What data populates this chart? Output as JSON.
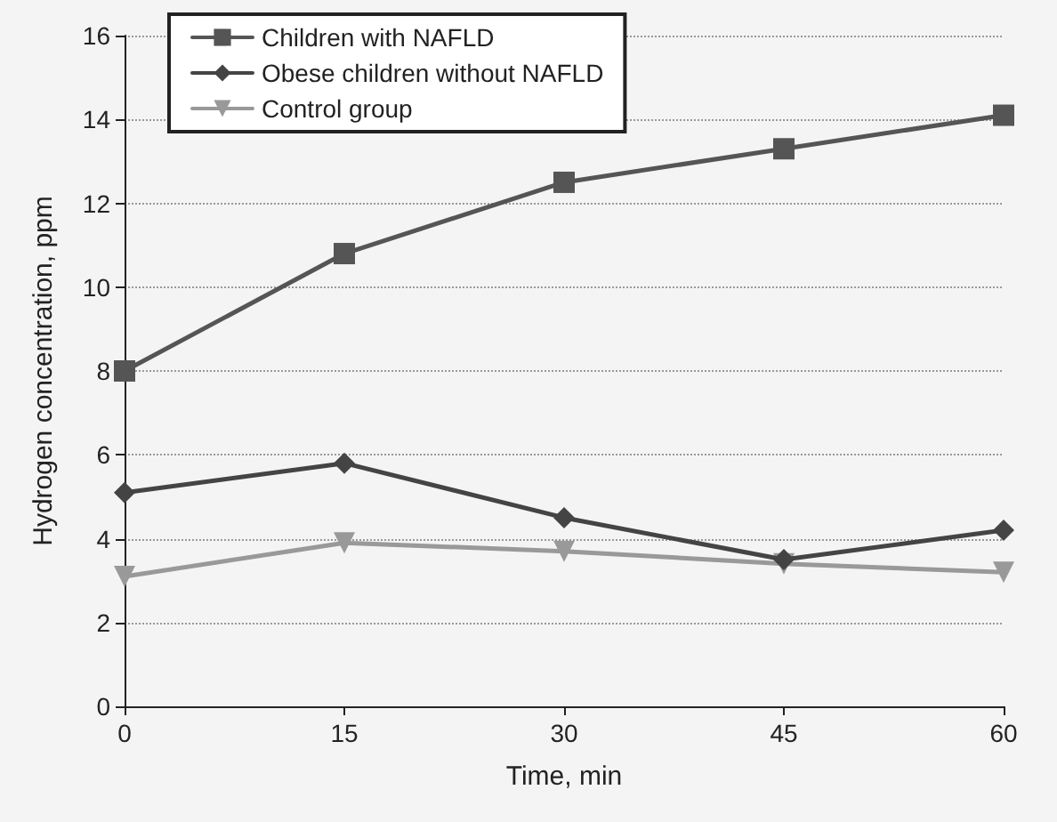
{
  "chart_data": {
    "type": "line",
    "xlabel": "Time, min",
    "ylabel": "Hydrogen concentration, ppm",
    "x": [
      0,
      15,
      30,
      45,
      60
    ],
    "xlim": [
      0,
      60
    ],
    "xticks": [
      0,
      15,
      30,
      45,
      60
    ],
    "ylim": [
      0,
      16
    ],
    "yticks": [
      0,
      2,
      4,
      6,
      8,
      10,
      12,
      14,
      16
    ],
    "grid": "y",
    "legend": "top left",
    "series": [
      {
        "name": "Children with NAFLD",
        "color": "#555555",
        "marker": "square",
        "values": [
          8,
          10.8,
          12.5,
          13.3,
          14.1
        ]
      },
      {
        "name": "Obese children without NAFLD",
        "color": "#444444",
        "marker": "diamond",
        "values": [
          5.1,
          5.8,
          4.5,
          3.5,
          4.2
        ]
      },
      {
        "name": "Control group",
        "color": "#999999",
        "marker": "triangle",
        "values": [
          3.1,
          3.9,
          3.7,
          3.4,
          3.2
        ]
      }
    ]
  }
}
